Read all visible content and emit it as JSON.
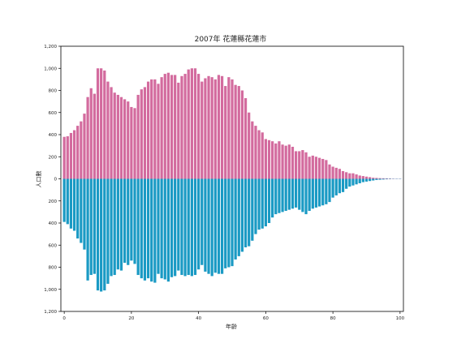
{
  "chart_data": {
    "type": "bar",
    "title": "2007年 花蓮縣花蓮市",
    "xlabel": "年齡",
    "ylabel": "人口數",
    "xlim": [
      0,
      100
    ],
    "ylim": [
      -1200,
      1200
    ],
    "x_ticks": [
      "0",
      "20",
      "40",
      "60",
      "80",
      "100"
    ],
    "y_ticks": [
      "1,200",
      "1,000",
      "800",
      "600",
      "400",
      "200",
      "0",
      "200",
      "400",
      "600",
      "800",
      "1,000",
      "1,200"
    ],
    "colors": {
      "upper": "#d36b9e",
      "lower": "#1a9ac4"
    },
    "ages": [
      0,
      1,
      2,
      3,
      4,
      5,
      6,
      7,
      8,
      9,
      10,
      11,
      12,
      13,
      14,
      15,
      16,
      17,
      18,
      19,
      20,
      21,
      22,
      23,
      24,
      25,
      26,
      27,
      28,
      29,
      30,
      31,
      32,
      33,
      34,
      35,
      36,
      37,
      38,
      39,
      40,
      41,
      42,
      43,
      44,
      45,
      46,
      47,
      48,
      49,
      50,
      51,
      52,
      53,
      54,
      55,
      56,
      57,
      58,
      59,
      60,
      61,
      62,
      63,
      64,
      65,
      66,
      67,
      68,
      69,
      70,
      71,
      72,
      73,
      74,
      75,
      76,
      77,
      78,
      79,
      80,
      81,
      82,
      83,
      84,
      85,
      86,
      87,
      88,
      89,
      90,
      91,
      92,
      93,
      94,
      95,
      96,
      97,
      98,
      99,
      100
    ],
    "series": [
      {
        "values": [
          380,
          385,
          415,
          440,
          480,
          520,
          590,
          740,
          820,
          770,
          1000,
          1000,
          980,
          880,
          830,
          780,
          760,
          740,
          720,
          700,
          650,
          640,
          760,
          810,
          830,
          880,
          900,
          900,
          860,
          920,
          950,
          960,
          940,
          940,
          870,
          930,
          950,
          990,
          1000,
          1000,
          950,
          880,
          910,
          930,
          920,
          900,
          940,
          930,
          840,
          920,
          900,
          850,
          840,
          800,
          730,
          600,
          520,
          480,
          440,
          420,
          360,
          350,
          340,
          320,
          340,
          310,
          300,
          310,
          290,
          250,
          250,
          260,
          240,
          200,
          210,
          200,
          190,
          180,
          170,
          130,
          110,
          100,
          90,
          70,
          60,
          50,
          50,
          40,
          30,
          25,
          20,
          15,
          10,
          8,
          6,
          5,
          4,
          3,
          2,
          1,
          1
        ]
      },
      {
        "values": [
          -390,
          -410,
          -450,
          -470,
          -540,
          -580,
          -640,
          -920,
          -870,
          -860,
          -1010,
          -1020,
          -1010,
          -950,
          -880,
          -870,
          -820,
          -830,
          -760,
          -780,
          -740,
          -770,
          -870,
          -900,
          -920,
          -900,
          -930,
          -940,
          -860,
          -900,
          -910,
          -930,
          -890,
          -880,
          -830,
          -870,
          -880,
          -870,
          -880,
          -870,
          -820,
          -780,
          -840,
          -860,
          -880,
          -850,
          -860,
          -860,
          -810,
          -800,
          -790,
          -730,
          -700,
          -660,
          -620,
          -610,
          -560,
          -500,
          -460,
          -450,
          -430,
          -400,
          -350,
          -320,
          -310,
          -300,
          -290,
          -280,
          -270,
          -260,
          -280,
          -300,
          -320,
          -290,
          -270,
          -260,
          -250,
          -240,
          -230,
          -210,
          -170,
          -150,
          -130,
          -120,
          -90,
          -70,
          -60,
          -50,
          -40,
          -30,
          -25,
          -20,
          -15,
          -10,
          -8,
          -6,
          -4,
          -3,
          -2,
          -1,
          -1
        ]
      }
    ]
  }
}
